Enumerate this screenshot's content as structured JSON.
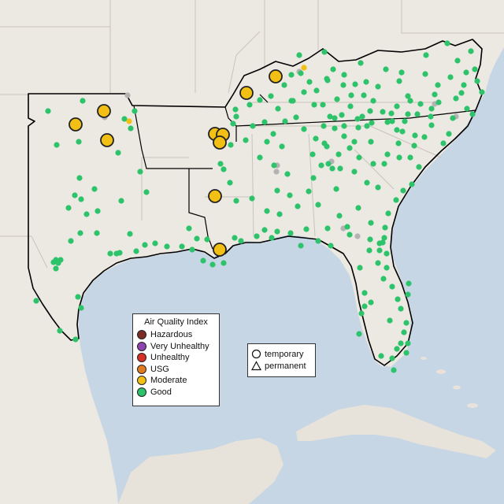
{
  "map": {
    "colors": {
      "water": "#c6d6e4",
      "land": "#ece8e2",
      "land_inset": "#e7e2da",
      "border": "#c9c3bb",
      "outline": "#000000",
      "good": "#2dc36b",
      "moderate": "#f2c014",
      "usg": "#e07b20",
      "unhealthy": "#d73027",
      "very_unhealthy": "#8e44ad",
      "hazardous": "#7b2d26",
      "no_data": "#b3b3b3"
    },
    "summary": {
      "counts_by_category": {
        "Good": 255,
        "Moderate": 12,
        "no data": 10
      },
      "marker_shape": "circle"
    }
  },
  "legend": {
    "title": "Air Quality Index",
    "items": [
      {
        "label": "Hazardous",
        "color": "#7b2d26"
      },
      {
        "label": "Very Unhealthy",
        "color": "#8e44ad"
      },
      {
        "label": "Unhealthy",
        "color": "#d73027"
      },
      {
        "label": "USG",
        "color": "#e07b20"
      },
      {
        "label": "Moderate",
        "color": "#f2c014"
      },
      {
        "label": "Good",
        "color": "#2dc36b"
      }
    ]
  },
  "monitor_types": {
    "items": [
      {
        "label": "temporary",
        "icon": "circle-outline-icon"
      },
      {
        "label": "permanent",
        "icon": "triangle-outline-icon"
      }
    ]
  }
}
